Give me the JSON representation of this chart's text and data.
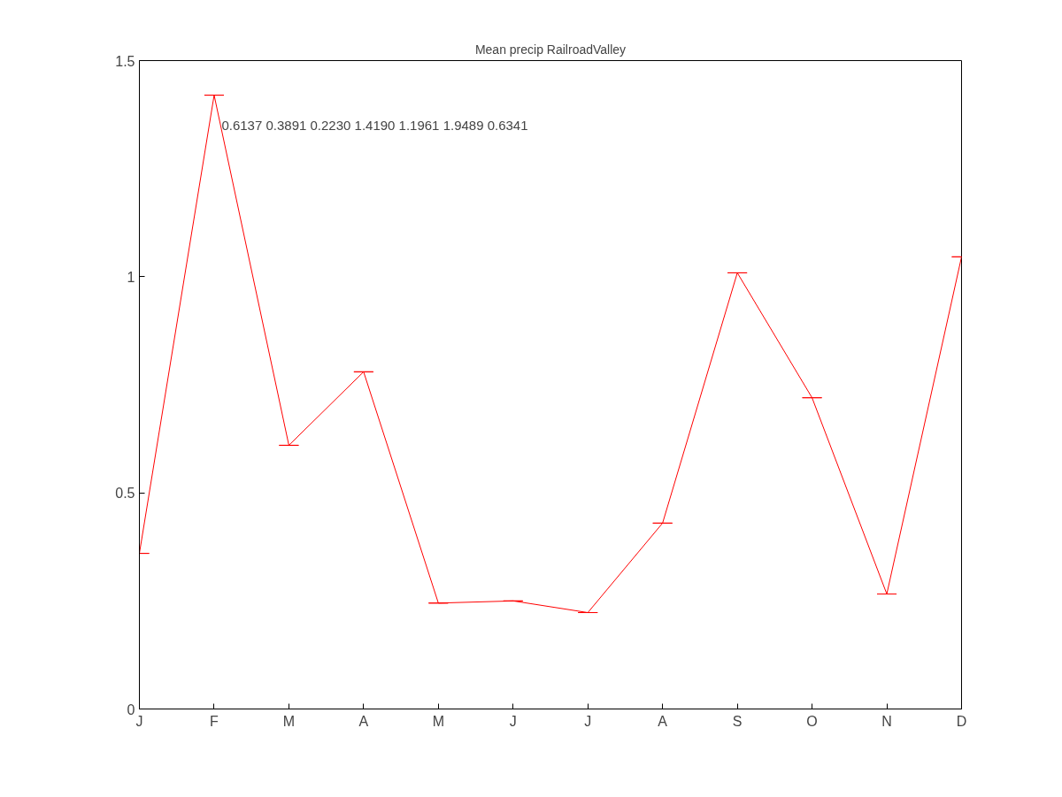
{
  "chart_data": {
    "type": "line",
    "title": "Mean precip RailroadValley",
    "categories": [
      "J",
      "F",
      "M",
      "A",
      "M",
      "J",
      "J",
      "A",
      "S",
      "O",
      "N",
      "D"
    ],
    "series": [
      {
        "color": "#ff0000",
        "values": [
          0.36,
          1.42,
          0.61,
          0.78,
          0.245,
          0.25,
          0.223,
          0.43,
          1.009,
          0.72,
          0.266,
          1.046
        ],
        "errors": [
          0,
          0,
          0,
          0,
          0,
          0,
          0,
          0,
          0,
          0,
          0,
          0
        ]
      }
    ],
    "ylim": [
      0,
      1.5
    ],
    "yticks": [
      0,
      0.5,
      1,
      1.5
    ],
    "grid": false,
    "marker": "none",
    "line_style": "solid",
    "annotations": [
      "0.6137  0.3891  0.2230  1.4190  1.1961  1.9489  0.6341"
    ]
  }
}
